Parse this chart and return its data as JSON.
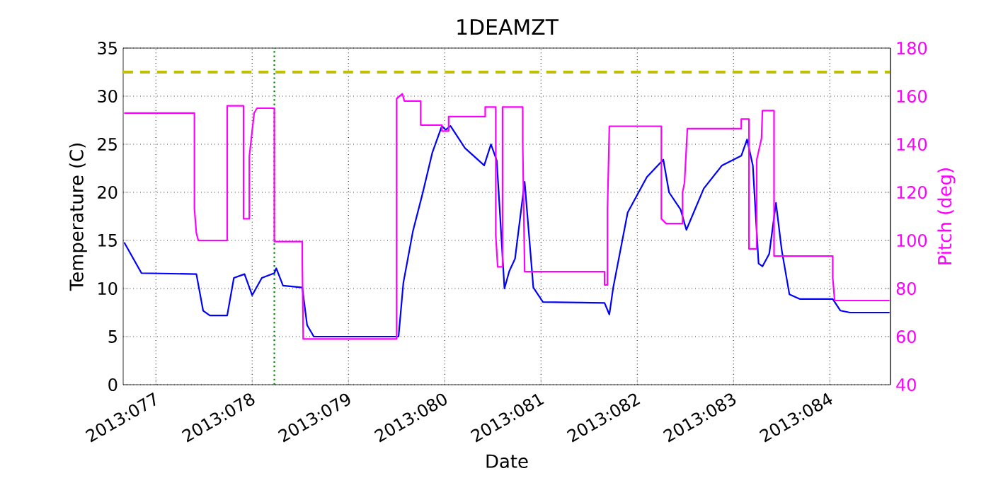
{
  "chart_data": {
    "type": "line",
    "title": "1DEAMZT",
    "xlabel": "Date",
    "ylabel": "Temperature (C)",
    "y2label": "Pitch (deg)",
    "xlim": [
      "2013-03-17T15:50",
      "2013-03-25T15:07"
    ],
    "xticks": [
      {
        "value": "2013-03-18",
        "label": "2013:077"
      },
      {
        "value": "2013-03-19",
        "label": "2013:078"
      },
      {
        "value": "2013-03-20",
        "label": "2013:079"
      },
      {
        "value": "2013-03-21",
        "label": "2013:080"
      },
      {
        "value": "2013-03-22",
        "label": "2013:081"
      },
      {
        "value": "2013-03-23",
        "label": "2013:082"
      },
      {
        "value": "2013-03-24",
        "label": "2013:083"
      },
      {
        "value": "2013-03-25",
        "label": "2013:084"
      }
    ],
    "ylim": [
      0,
      35
    ],
    "yticks": [
      0,
      5,
      10,
      15,
      20,
      25,
      30,
      35
    ],
    "y2lim": [
      40,
      180
    ],
    "y2ticks": [
      40,
      60,
      80,
      100,
      120,
      140,
      160,
      180
    ],
    "grid": true,
    "series": [
      {
        "color": "#0000ff",
        "x": [
          "2013-03-17T16:05",
          "2013-03-17T20:24",
          "2013-03-18T10:05",
          "2013-03-18T11:46",
          "2013-03-18T13:26",
          "2013-03-18T17:46",
          "2013-03-18T19:26",
          "2013-03-18T22:05",
          "2013-03-19T00:00",
          "2013-03-19T02:24",
          "2013-03-19T05:31",
          "2013-03-19T06:00",
          "2013-03-19T07:41",
          "2013-03-19T12:29",
          "2013-03-19T13:41",
          "2013-03-19T15:22",
          "2013-03-20T12:29",
          "2013-03-20T13:41",
          "2013-03-20T16:05",
          "2013-03-20T18:29",
          "2013-03-20T20:53",
          "2013-03-20T23:17",
          "2013-03-21T00:14",
          "2013-03-21T01:26",
          "2013-03-21T05:02",
          "2013-03-21T09:50",
          "2013-03-21T11:31",
          "2013-03-21T12:58",
          "2013-03-21T14:53",
          "2013-03-21T16:05",
          "2013-03-21T17:31",
          "2013-03-21T19:55",
          "2013-03-21T22:05",
          "2013-03-22T00:29",
          "2013-03-22T15:50",
          "2013-03-22T17:02",
          "2013-03-22T18:00",
          "2013-03-22T21:36",
          "2013-03-23T02:24",
          "2013-03-23T06:29",
          "2013-03-23T07:55",
          "2013-03-23T10:48",
          "2013-03-23T12:14",
          "2013-03-23T16:34",
          "2013-03-23T21:07",
          "2013-03-24T01:55",
          "2013-03-24T03:22",
          "2013-03-24T04:48",
          "2013-03-24T06:14",
          "2013-03-24T07:12",
          "2013-03-24T08:53",
          "2013-03-24T10:34",
          "2013-03-24T12:00",
          "2013-03-24T13:55",
          "2013-03-24T16:34",
          "2013-03-25T00:43",
          "2013-03-25T02:38",
          "2013-03-25T05:02",
          "2013-03-25T14:53"
        ],
        "values": [
          14.8,
          11.6,
          11.5,
          7.7,
          7.2,
          7.2,
          11.1,
          11.5,
          9.3,
          11.1,
          11.6,
          12.1,
          10.3,
          10.1,
          6.2,
          5.0,
          5.0,
          10.6,
          16.0,
          19.9,
          24.1,
          26.9,
          26.5,
          26.9,
          24.6,
          22.8,
          25.0,
          23.3,
          10.0,
          11.8,
          13.1,
          21.1,
          10.1,
          8.6,
          8.5,
          7.3,
          10.1,
          17.9,
          21.6,
          23.4,
          20.0,
          18.2,
          16.1,
          20.4,
          22.8,
          23.8,
          25.5,
          22.8,
          12.6,
          12.3,
          13.6,
          18.9,
          14.0,
          9.4,
          8.9,
          8.9,
          7.7,
          7.5,
          7.5
        ]
      },
      {
        "color": "#ff00ff",
        "axis": "y2",
        "x": [
          "2013-03-17T16:05",
          "2013-03-18T09:36",
          "2013-03-18T09:36",
          "2013-03-18T10:05",
          "2013-03-18T10:34",
          "2013-03-18T17:46",
          "2013-03-18T17:46",
          "2013-03-18T21:50",
          "2013-03-18T21:50",
          "2013-03-18T23:17",
          "2013-03-18T23:17",
          "2013-03-19T00:29",
          "2013-03-19T01:12",
          "2013-03-19T05:31",
          "2013-03-19T05:31",
          "2013-03-19T12:29",
          "2013-03-19T12:29",
          "2013-03-19T12:43",
          "2013-03-20T12:00",
          "2013-03-20T12:00",
          "2013-03-20T13:26",
          "2013-03-20T13:55",
          "2013-03-20T18:00",
          "2013-03-20T18:00",
          "2013-03-20T23:17",
          "2013-03-20T23:17",
          "2013-03-21T00:58",
          "2013-03-21T00:58",
          "2013-03-21T10:05",
          "2013-03-21T10:05",
          "2013-03-21T12:43",
          "2013-03-21T12:43",
          "2013-03-21T13:12",
          "2013-03-21T14:24",
          "2013-03-21T14:24",
          "2013-03-21T19:26",
          "2013-03-21T19:26",
          "2013-03-21T19:55",
          "2013-03-22T15:50",
          "2013-03-22T15:50",
          "2013-03-22T16:34",
          "2013-03-22T16:34",
          "2013-03-22T17:02",
          "2013-03-23T06:00",
          "2013-03-23T06:00",
          "2013-03-23T07:12",
          "2013-03-23T11:17",
          "2013-03-23T11:17",
          "2013-03-23T11:46",
          "2013-03-23T12:29",
          "2013-03-24T01:55",
          "2013-03-24T01:55",
          "2013-03-24T03:50",
          "2013-03-24T03:50",
          "2013-03-24T05:46",
          "2013-03-24T05:46",
          "2013-03-24T06:58",
          "2013-03-24T07:12",
          "2013-03-24T10:05",
          "2013-03-24T10:05",
          "2013-03-25T00:43",
          "2013-03-25T00:43",
          "2013-03-25T01:12",
          "2013-03-25T14:53"
        ],
        "values": [
          153,
          153,
          113,
          103,
          100,
          100,
          156,
          156,
          109,
          109,
          135,
          153,
          155,
          155,
          99.5,
          99.5,
          92,
          59,
          59,
          159,
          161,
          158,
          158,
          148,
          148,
          145.5,
          145.5,
          151.5,
          151.5,
          155.5,
          155.5,
          102,
          89,
          89,
          155.5,
          155.5,
          141,
          87,
          87,
          81.5,
          81.5,
          113,
          147.5,
          147.5,
          109,
          107,
          107,
          120,
          124,
          146.5,
          146.5,
          150.5,
          150.5,
          96.5,
          96.5,
          133.5,
          142.5,
          154,
          154,
          93.5,
          93.5,
          84.5,
          75,
          75
        ]
      }
    ],
    "ref_lines": [
      {
        "axis": "y",
        "value": 32.5,
        "color": "#bfbf00",
        "line_style": "dashed"
      },
      {
        "axis": "x",
        "value": "2013-03-19T05:31",
        "color": "#008000",
        "line_style": "dotted"
      }
    ]
  }
}
